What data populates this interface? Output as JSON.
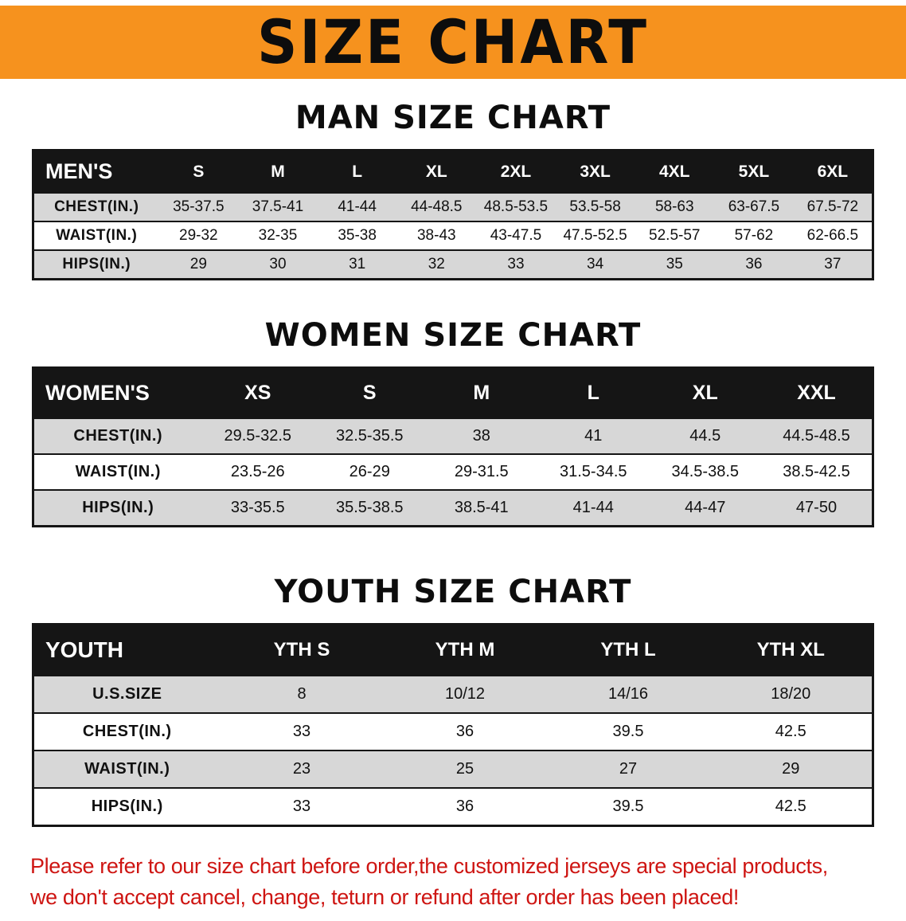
{
  "banner": {
    "title": "SIZE CHART"
  },
  "sections": [
    {
      "heading": "MAN SIZE CHART",
      "table": {
        "corner": "MEN'S",
        "columns": [
          "S",
          "M",
          "L",
          "XL",
          "2XL",
          "3XL",
          "4XL",
          "5XL",
          "6XL"
        ],
        "rows": [
          {
            "label": "CHEST(IN.)",
            "values": [
              "35-37.5",
              "37.5-41",
              "41-44",
              "44-48.5",
              "48.5-53.5",
              "53.5-58",
              "58-63",
              "63-67.5",
              "67.5-72"
            ]
          },
          {
            "label": "WAIST(IN.)",
            "values": [
              "29-32",
              "32-35",
              "35-38",
              "38-43",
              "43-47.5",
              "47.5-52.5",
              "52.5-57",
              "57-62",
              "62-66.5"
            ]
          },
          {
            "label": "HIPS(IN.)",
            "values": [
              "29",
              "30",
              "31",
              "32",
              "33",
              "34",
              "35",
              "36",
              "37"
            ]
          }
        ]
      }
    },
    {
      "heading": "WOMEN SIZE CHART",
      "table": {
        "corner": "WOMEN'S",
        "columns": [
          "XS",
          "S",
          "M",
          "L",
          "XL",
          "XXL"
        ],
        "rows": [
          {
            "label": "CHEST(IN.)",
            "values": [
              "29.5-32.5",
              "32.5-35.5",
              "38",
              "41",
              "44.5",
              "44.5-48.5"
            ]
          },
          {
            "label": "WAIST(IN.)",
            "values": [
              "23.5-26",
              "26-29",
              "29-31.5",
              "31.5-34.5",
              "34.5-38.5",
              "38.5-42.5"
            ]
          },
          {
            "label": "HIPS(IN.)",
            "values": [
              "33-35.5",
              "35.5-38.5",
              "38.5-41",
              "41-44",
              "44-47",
              "47-50"
            ]
          }
        ]
      }
    },
    {
      "heading": "YOUTH SIZE CHART",
      "table": {
        "corner": "YOUTH",
        "columns": [
          "YTH S",
          "YTH M",
          "YTH L",
          "YTH XL"
        ],
        "rows": [
          {
            "label": "U.S.SIZE",
            "values": [
              "8",
              "10/12",
              "14/16",
              "18/20"
            ]
          },
          {
            "label": "CHEST(IN.)",
            "values": [
              "33",
              "36",
              "39.5",
              "42.5"
            ]
          },
          {
            "label": "WAIST(IN.)",
            "values": [
              "23",
              "25",
              "27",
              "29"
            ]
          },
          {
            "label": "HIPS(IN.)",
            "values": [
              "33",
              "36",
              "39.5",
              "42.5"
            ]
          }
        ]
      }
    }
  ],
  "footer": {
    "line1": "Please refer to our size chart before order,the customized jerseys are special products,",
    "line2": "we don't accept cancel, change, teturn or refund after order has been placed!"
  },
  "colors": {
    "accent-orange": "#f6921e",
    "header-black": "#151515",
    "row-gray": "#d7d7d7",
    "note-red": "#ce1512"
  }
}
